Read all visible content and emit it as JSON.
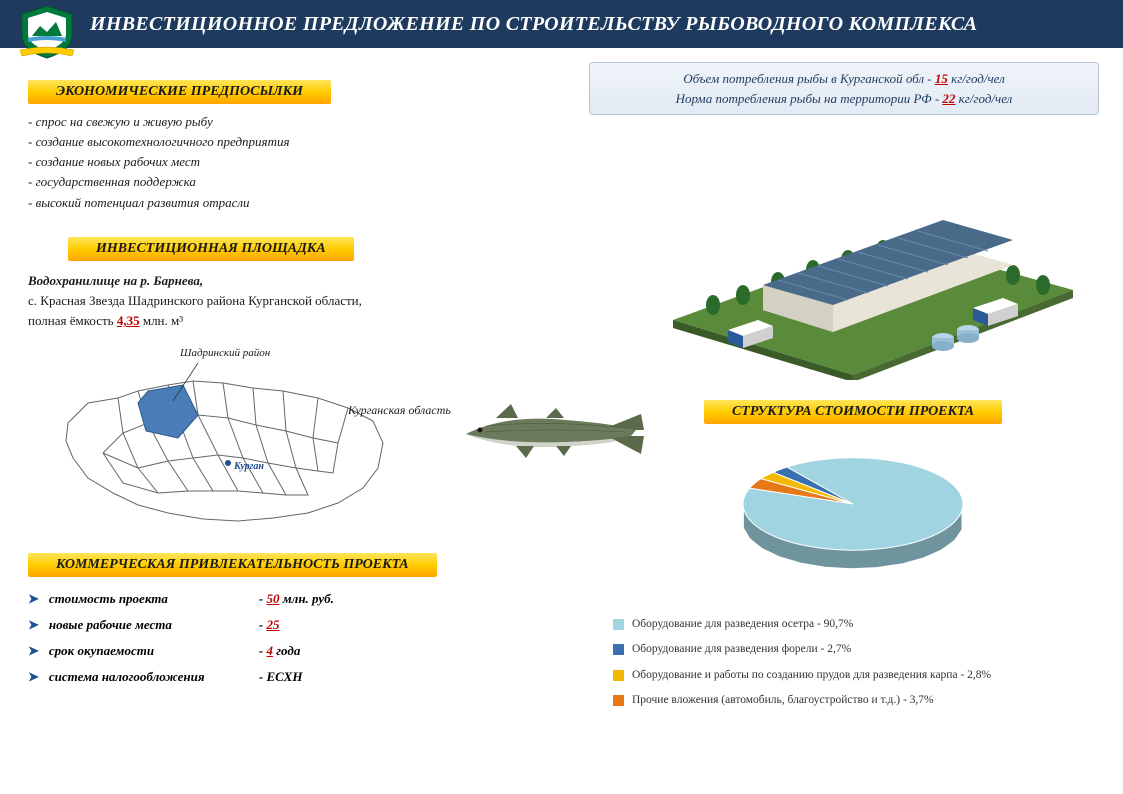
{
  "header": {
    "title": "ИНВЕСТИЦИОННОЕ ПРЕДЛОЖЕНИЕ ПО СТРОИТЕЛЬСТВУ РЫБОВОДНОГО КОМПЛЕКСА",
    "bg_color": "#1e3a5f",
    "text_color": "#ffffff"
  },
  "crest": {
    "shield_fill": "#007a3d",
    "ribbon_fill": "#ffcc00",
    "inner_fill": "#ffffff"
  },
  "labels": {
    "economic": "ЭКОНОМИЧЕСКИЕ ПРЕДПОСЫЛКИ",
    "site": "ИНВЕСТИЦИОННАЯ ПЛОЩАДКА",
    "commercial": "КОММЕРЧЕСКАЯ ПРИВЛЕКАТЕЛЬНОСТЬ ПРОЕКТА",
    "pie": "СТРУКТУРА СТОИМОСТИ ПРОЕКТА",
    "gradient_top": "#ffe55c",
    "gradient_mid": "#ffcc00",
    "gradient_bot": "#ffa500"
  },
  "economic_bullets": [
    "- спрос на свежую и живую рыбу",
    "- создание высокотехнологичного предприятия",
    "- создание новых рабочих мест",
    "- государственная поддержка",
    "- высокий потенциал развития отрасли"
  ],
  "site": {
    "line1_bold": "Водохранилище на р. Барнева,",
    "line2": "с. Красная Звезда Шадринского района Курганской области,",
    "line3_prefix": "полная ёмкость ",
    "line3_value": "4,35",
    "line3_suffix": " млн. м³"
  },
  "map": {
    "label_district": "Шадринский район",
    "label_region": "Курганская область",
    "label_city": "Курган",
    "highlight_fill": "#4a7db8",
    "outline_color": "#666666",
    "city_dot_color": "#1e4f8f"
  },
  "commercial": {
    "rows": [
      {
        "label": "стоимость проекта",
        "value_red": "50",
        "value_suffix": " млн. руб."
      },
      {
        "label": "новые рабочие места",
        "value_red": "25",
        "value_suffix": ""
      },
      {
        "label": "срок окупаемости",
        "value_red": "4",
        "value_suffix": " года"
      },
      {
        "label": "система налогообложения",
        "value_red": "",
        "value_suffix": "ЕСХН"
      }
    ],
    "arrow_color": "#1e4f8f"
  },
  "info_box": {
    "line1_prefix": "Объем потребления рыбы в Курганской обл - ",
    "line1_value": "15",
    "line1_suffix": " кг/год/чел",
    "line2_prefix": "Норма потребления рыбы на территории РФ - ",
    "line2_value": "22",
    "line2_suffix": " кг/год/чел",
    "bg_top": "#f0f4fa",
    "bg_bot": "#e2eaf4",
    "border": "#b8c4d6"
  },
  "facility": {
    "grass_color": "#5a8b3a",
    "roof_color": "#4a6a8a",
    "wall_color": "#e8e4d8",
    "accent_color": "#2a5a9a"
  },
  "fish": {
    "body_color": "#6a7a5a",
    "belly_color": "#d0d4c8"
  },
  "pie": {
    "type": "pie",
    "slices": [
      {
        "label": "Оборудование для разведения осетра - 90,7%",
        "value": 90.7,
        "color": "#9fd4e0"
      },
      {
        "label": "Оборудование для разведения форели - 2,7%",
        "value": 2.7,
        "color": "#3a6fb0"
      },
      {
        "label": "Оборудование и работы по созданию прудов для разведения карпа - 2,8%",
        "value": 2.8,
        "color": "#f5b800"
      },
      {
        "label": "Прочие вложения (автомобиль, благоустройство и т.д.) - 3,7%",
        "value": 3.7,
        "color": "#e67817"
      }
    ],
    "tilt": 0.42,
    "depth": 18
  }
}
